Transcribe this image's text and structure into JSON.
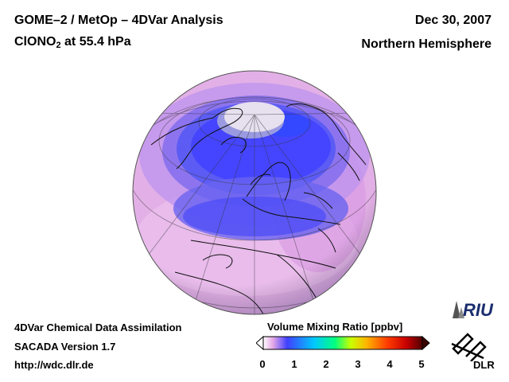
{
  "header": {
    "title": "GOME–2 / MetOp – 4DVar Analysis",
    "species_main": "ClONO",
    "species_sub": "2",
    "species_rest": " at 55.4 hPa",
    "date": "Dec 30, 2007",
    "region": "Northern Hemisphere"
  },
  "footer": {
    "line1": "4DVar Chemical Data Assimilation",
    "line2": "SACADA Version 1.7",
    "line3": "http://wdc.dlr.de"
  },
  "colorbar": {
    "title": "Volume Mixing Ratio [ppbv]",
    "ticks": [
      "0",
      "1",
      "2",
      "3",
      "4",
      "5"
    ],
    "min": 0,
    "max": 5,
    "colors": [
      "#ffffff",
      "#e6a8e6",
      "#4040ff",
      "#00c8ff",
      "#00ff80",
      "#c8ff00",
      "#ffb400",
      "#ff3c00",
      "#c80000",
      "#500000"
    ]
  },
  "logos": {
    "institute": "RIU",
    "agency": "DLR"
  }
}
